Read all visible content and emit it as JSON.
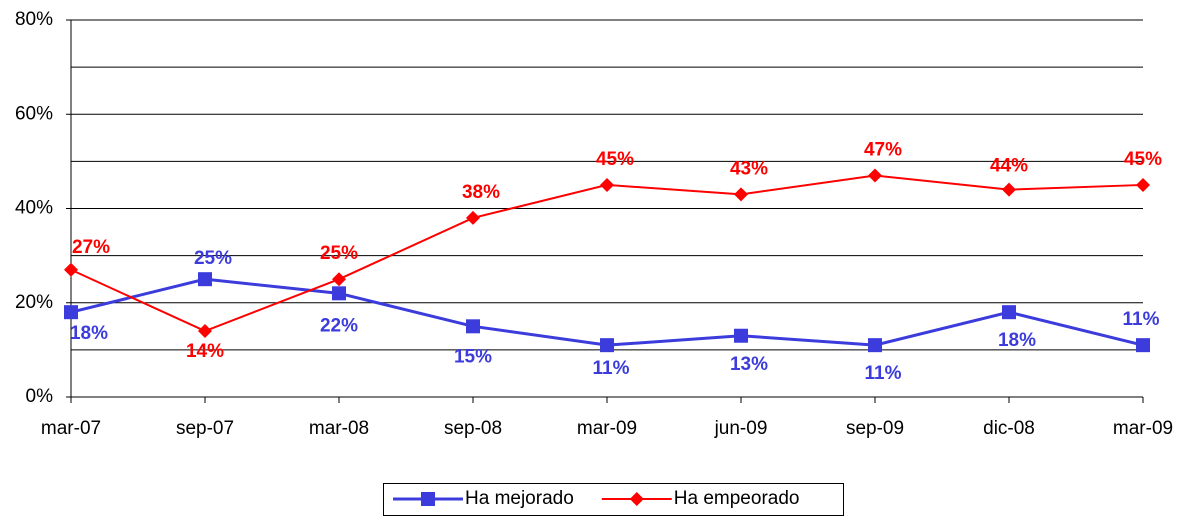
{
  "chart_data": {
    "type": "line",
    "categories": [
      "mar-07",
      "sep-07",
      "mar-08",
      "sep-08",
      "mar-09",
      "jun-09",
      "sep-09",
      "dic-08",
      "mar-09"
    ],
    "series": [
      {
        "name": "Ha mejorado",
        "color": "#3c3cdc",
        "marker": "square",
        "values": [
          18,
          25,
          22,
          15,
          11,
          13,
          11,
          18,
          11
        ],
        "value_labels": [
          "18%",
          "25%",
          "22%",
          "15%",
          "11%",
          "13%",
          "11%",
          "18%",
          "11%"
        ]
      },
      {
        "name": "Ha empeorado",
        "color": "#ff0000",
        "marker": "diamond",
        "values": [
          27,
          14,
          25,
          38,
          45,
          43,
          47,
          44,
          45
        ],
        "value_labels": [
          "27%",
          "14%",
          "25%",
          "38%",
          "45%",
          "43%",
          "47%",
          "44%",
          "45%"
        ]
      }
    ],
    "ylim": [
      0,
      80
    ],
    "yticks": [
      {
        "value": 0,
        "label": "0%"
      },
      {
        "value": 20,
        "label": "20%"
      },
      {
        "value": 40,
        "label": "40%"
      },
      {
        "value": 60,
        "label": "60%"
      },
      {
        "value": 80,
        "label": "80%"
      }
    ],
    "minor_yticks": [
      10,
      30,
      50,
      70
    ],
    "grid": true,
    "legend": "bottom"
  }
}
